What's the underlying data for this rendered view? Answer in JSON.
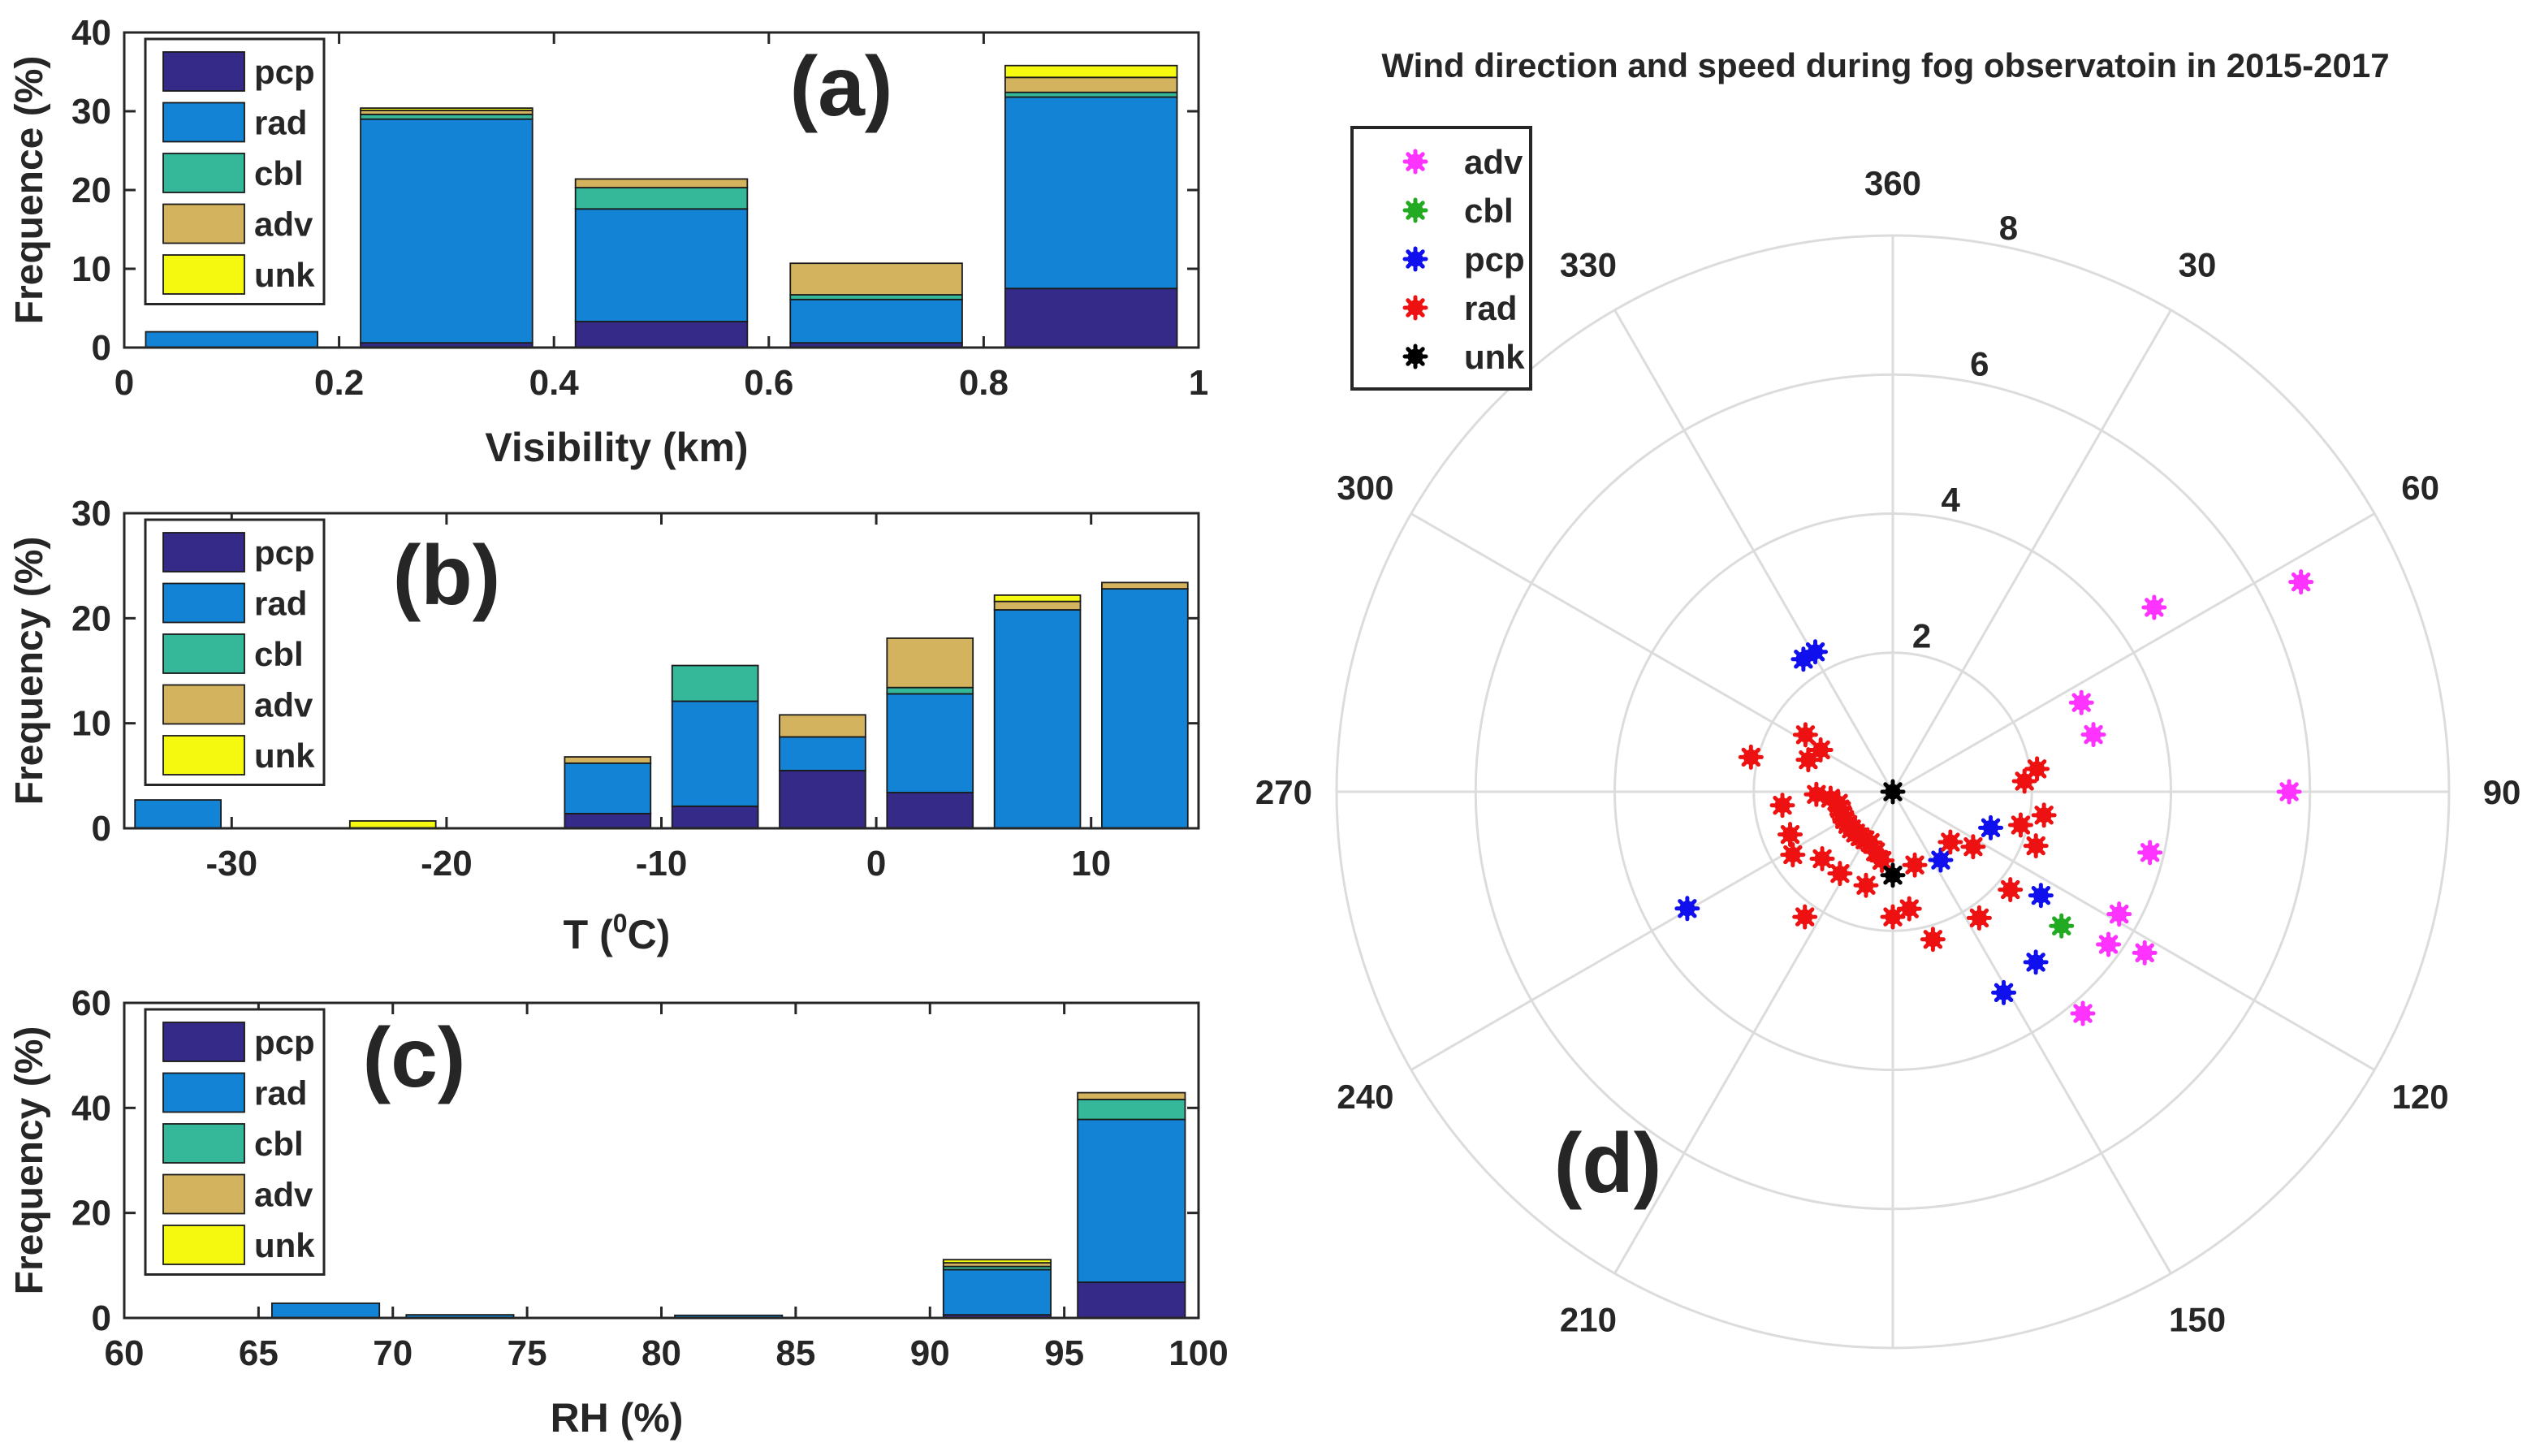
{
  "chart_data": [
    {
      "panel": "a",
      "type": "bar",
      "stacked": true,
      "panel_label": "(a)",
      "xlabel": "Visibility (km)",
      "ylabel": "Frequence (%)",
      "xlim": [
        0,
        1
      ],
      "ylim": [
        0,
        40
      ],
      "xticks": [
        0,
        0.2,
        0.4,
        0.6,
        0.8,
        1
      ],
      "xtick_labels": [
        "0",
        "0.2",
        "0.4",
        "0.6",
        "0.8",
        "1"
      ],
      "yticks": [
        0,
        10,
        20,
        30,
        40
      ],
      "ytick_labels": [
        "0",
        "10",
        "20",
        "30",
        "40"
      ],
      "categories": [
        0.1,
        0.3,
        0.5,
        0.7,
        0.9
      ],
      "bar_width": 0.16,
      "legend_position": "top-left",
      "series": [
        {
          "name": "pcp",
          "color": "#352a87",
          "values": [
            0,
            0.6,
            3.3,
            0.6,
            7.5
          ]
        },
        {
          "name": "rad",
          "color": "#1384d5",
          "values": [
            2.0,
            28.4,
            14.3,
            5.5,
            24.3
          ]
        },
        {
          "name": "cbl",
          "color": "#35b799",
          "values": [
            0,
            0.6,
            2.7,
            0.6,
            0.6
          ]
        },
        {
          "name": "adv",
          "color": "#d4b35f",
          "values": [
            0,
            0.5,
            1.1,
            4.0,
            1.9
          ]
        },
        {
          "name": "unk",
          "color": "#f5f80f",
          "values": [
            0,
            0.3,
            0,
            0,
            1.5
          ]
        }
      ]
    },
    {
      "panel": "b",
      "type": "bar",
      "stacked": true,
      "panel_label": "(b)",
      "xlabel": "T (",
      "xlabel_sup": "0",
      "xlabel_tail": "C)",
      "ylabel": "Frequency (%)",
      "xlim": [
        -35,
        15
      ],
      "ylim": [
        0,
        30
      ],
      "xticks": [
        -30,
        -20,
        -10,
        0,
        10
      ],
      "xtick_labels": [
        "-30",
        "-20",
        "-10",
        "0",
        "10"
      ],
      "yticks": [
        0,
        10,
        20,
        30
      ],
      "ytick_labels": [
        "0",
        "10",
        "20",
        "30"
      ],
      "categories": [
        -32.5,
        -27.5,
        -22.5,
        -17.5,
        -12.5,
        -7.5,
        -2.5,
        2.5,
        7.5,
        12.5
      ],
      "bar_width": 4.0,
      "legend_position": "top-left",
      "series": [
        {
          "name": "pcp",
          "color": "#352a87",
          "values": [
            0,
            0,
            0,
            0,
            1.4,
            2.1,
            5.5,
            3.4,
            0,
            0
          ]
        },
        {
          "name": "rad",
          "color": "#1384d5",
          "values": [
            2.7,
            0,
            0,
            0,
            4.8,
            10.0,
            3.2,
            9.4,
            20.8,
            22.8
          ]
        },
        {
          "name": "cbl",
          "color": "#35b799",
          "values": [
            0,
            0,
            0,
            0,
            0,
            3.4,
            0,
            0.6,
            0,
            0
          ]
        },
        {
          "name": "adv",
          "color": "#d4b35f",
          "values": [
            0,
            0,
            0,
            0,
            0.6,
            0,
            2.1,
            4.7,
            0.8,
            0.6
          ]
        },
        {
          "name": "unk",
          "color": "#f5f80f",
          "values": [
            0,
            0,
            0.7,
            0,
            0,
            0,
            0,
            0,
            0.6,
            0
          ]
        }
      ]
    },
    {
      "panel": "c",
      "type": "bar",
      "stacked": true,
      "panel_label": "(c)",
      "xlabel": "RH (%)",
      "ylabel": "Frequency (%)",
      "xlim": [
        60,
        100
      ],
      "ylim": [
        0,
        60
      ],
      "xticks": [
        60,
        65,
        70,
        75,
        80,
        85,
        90,
        95,
        100
      ],
      "xtick_labels": [
        "60",
        "65",
        "70",
        "75",
        "80",
        "85",
        "90",
        "95",
        "100"
      ],
      "yticks": [
        0,
        20,
        40,
        60
      ],
      "ytick_labels": [
        "0",
        "20",
        "40",
        "60"
      ],
      "categories": [
        62.5,
        67.5,
        72.5,
        77.5,
        82.5,
        87.5,
        92.5,
        97.5
      ],
      "bar_width": 4.0,
      "legend_position": "top-left",
      "series": [
        {
          "name": "pcp",
          "color": "#352a87",
          "values": [
            0,
            0,
            0,
            0,
            0,
            0,
            0.6,
            6.8
          ]
        },
        {
          "name": "rad",
          "color": "#1384d5",
          "values": [
            0,
            2.8,
            0.6,
            0,
            0.5,
            0,
            8.6,
            31.0
          ]
        },
        {
          "name": "cbl",
          "color": "#35b799",
          "values": [
            0,
            0,
            0,
            0,
            0,
            0,
            0.6,
            3.8
          ]
        },
        {
          "name": "adv",
          "color": "#d4b35f",
          "values": [
            0,
            0,
            0,
            0,
            0,
            0,
            0.7,
            1.3
          ]
        },
        {
          "name": "unk",
          "color": "#f5f80f",
          "values": [
            0,
            0,
            0,
            0,
            0,
            0,
            0.6,
            0
          ]
        }
      ]
    },
    {
      "panel": "d",
      "type": "scatter",
      "coordinate_system": "polar",
      "panel_label": "(d)",
      "title": "Wind direction and speed during fog observatoin in 2015-2017",
      "theta_ticks": [
        0,
        30,
        60,
        90,
        120,
        150,
        180,
        210,
        240,
        270,
        300,
        330
      ],
      "theta_labels": [
        "360",
        "30",
        "60",
        "90",
        "120",
        "150",
        "",
        "210",
        "240",
        "270",
        "300",
        "330"
      ],
      "r_ticks": [
        2,
        4,
        6,
        8
      ],
      "r_labels": [
        "2",
        "4",
        "6",
        "8"
      ],
      "r_max": 8,
      "theta_zero": "north",
      "theta_direction": "clockwise",
      "legend_position": "top-left",
      "series": [
        {
          "name": "adv",
          "color": "#ff33ff",
          "points": [
            [
              54.8,
              4.6
            ],
            [
              62.8,
              6.6
            ],
            [
              64.7,
              3.0
            ],
            [
              74.1,
              3.0
            ],
            [
              90.0,
              5.7
            ],
            [
              103.3,
              3.8
            ],
            [
              118.4,
              3.7
            ],
            [
              122.6,
              4.3
            ],
            [
              125.3,
              3.8
            ],
            [
              139.4,
              4.2
            ]
          ]
        },
        {
          "name": "cbl",
          "color": "#22aa22",
          "points": [
            [
              128.5,
              3.1
            ]
          ]
        },
        {
          "name": "pcp",
          "color": "#1010ee",
          "points": [
            [
              326.0,
              2.3
            ],
            [
              331.0,
              2.3
            ],
            [
              110.2,
              1.5
            ],
            [
              125.0,
              2.6
            ],
            [
              140.0,
              3.2
            ],
            [
              151.1,
              3.3
            ],
            [
              145.0,
              1.2
            ],
            [
              240.4,
              3.4
            ]
          ]
        },
        {
          "name": "rad",
          "color": "#ee1111",
          "points": [
            [
              290.7,
              1.3
            ],
            [
              303.1,
              1.5
            ],
            [
              300.1,
              1.2
            ],
            [
              283.7,
              2.1
            ],
            [
              268.0,
              1.1
            ],
            [
              264.0,
              0.9
            ],
            [
              258.0,
              0.8
            ],
            [
              252.0,
              0.8
            ],
            [
              246.0,
              0.8
            ],
            [
              240.0,
              0.8
            ],
            [
              234.0,
              0.8
            ],
            [
              228.0,
              0.8
            ],
            [
              222.0,
              0.8
            ],
            [
              216.0,
              0.8
            ],
            [
              210.0,
              0.8
            ],
            [
              204.0,
              0.8
            ],
            [
              196.0,
              0.9
            ],
            [
              189.0,
              1.0
            ],
            [
              247.4,
              1.6
            ],
            [
              237.8,
              1.7
            ],
            [
              226.5,
              1.4
            ],
            [
              212.9,
              1.4
            ],
            [
              215.1,
              2.2
            ],
            [
              180.0,
              1.8
            ],
            [
              163.3,
              1.1
            ],
            [
              131.2,
              1.1
            ],
            [
              124.4,
              1.4
            ],
            [
              110.7,
              2.2
            ],
            [
              104.6,
              1.9
            ],
            [
              98.8,
              2.2
            ],
            [
              85.4,
              1.9
            ],
            [
              81.0,
              2.1
            ],
            [
              129.8,
              2.2
            ],
            [
              145.6,
              2.2
            ],
            [
              164.8,
              2.2
            ],
            [
              263.0,
              1.6
            ],
            [
              196.0,
              1.4
            ],
            [
              172.0,
              1.7
            ]
          ]
        },
        {
          "name": "unk",
          "color": "#000000",
          "points": [
            [
              0,
              0
            ],
            [
              180.0,
              1.2
            ]
          ]
        }
      ]
    }
  ]
}
